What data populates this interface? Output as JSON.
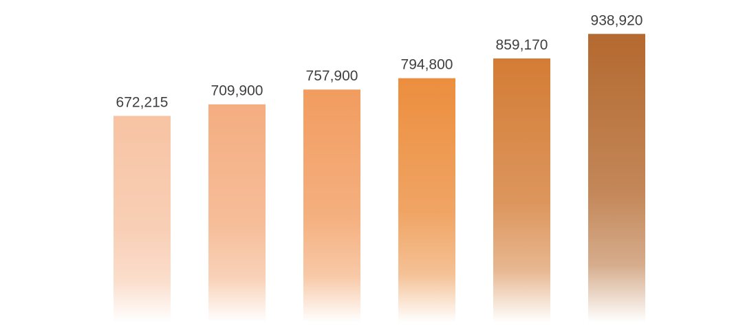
{
  "chart_data": {
    "type": "bar",
    "categories": [
      "",
      "",
      "",
      "",
      "",
      ""
    ],
    "values": [
      672215,
      709900,
      757900,
      794800,
      859170,
      938920
    ],
    "data_labels": [
      "672,215",
      "709,900",
      "757,900",
      "794,800",
      "859,170",
      "938,920"
    ],
    "title": "",
    "xlabel": "",
    "ylabel": "",
    "ylim": [
      0,
      1000000
    ],
    "grid": false,
    "legend": "none",
    "bar_colors": [
      "#f7c3a3",
      "#f4ad80",
      "#f29c5f",
      "#ec8e3e",
      "#d47c35",
      "#b4692f"
    ],
    "label_color": "#3f3f3f"
  }
}
